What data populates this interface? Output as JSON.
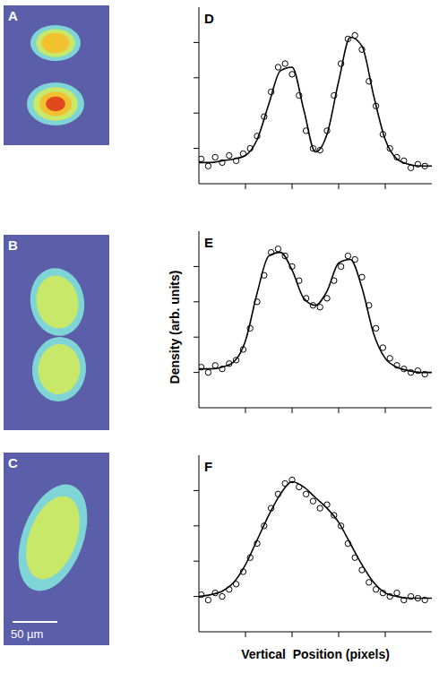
{
  "chart_data": [
    {
      "panel": "D",
      "type": "line",
      "xlim": [
        0,
        100
      ],
      "xticks": [
        20,
        40,
        60,
        80
      ],
      "ylim": [
        0,
        1
      ],
      "yticks": [
        0.2,
        0.4,
        0.6,
        0.8
      ],
      "tick_labels": false,
      "grid": false,
      "series": [
        {
          "type": "scatter",
          "marker": "open_circle",
          "color": "#000000",
          "x": [
            1,
            4,
            7,
            10,
            13,
            16,
            19,
            22,
            25,
            28,
            31,
            34,
            37,
            40,
            43,
            46,
            49,
            52,
            55,
            58,
            61,
            64,
            67,
            70,
            73,
            76,
            79,
            82,
            85,
            88,
            91,
            94,
            97
          ],
          "values": [
            0.14,
            0.1,
            0.15,
            0.12,
            0.16,
            0.13,
            0.17,
            0.2,
            0.27,
            0.38,
            0.52,
            0.66,
            0.68,
            0.62,
            0.5,
            0.3,
            0.2,
            0.19,
            0.3,
            0.5,
            0.68,
            0.82,
            0.84,
            0.76,
            0.58,
            0.44,
            0.28,
            0.2,
            0.15,
            0.13,
            0.09,
            0.11,
            0.1
          ]
        },
        {
          "type": "line",
          "line_style": "solid",
          "color": "#000000",
          "x": [
            0,
            5,
            10,
            15,
            20,
            25,
            30,
            35,
            40,
            45,
            50,
            55,
            60,
            65,
            70,
            75,
            80,
            85,
            90,
            95,
            100
          ],
          "values": [
            0.12,
            0.12,
            0.13,
            0.14,
            0.16,
            0.25,
            0.45,
            0.64,
            0.66,
            0.42,
            0.18,
            0.28,
            0.58,
            0.83,
            0.78,
            0.5,
            0.25,
            0.14,
            0.11,
            0.1,
            0.1
          ]
        }
      ]
    },
    {
      "panel": "E",
      "type": "line",
      "ylabel": "Density (arb. units)",
      "xlim": [
        0,
        100
      ],
      "xticks": [
        20,
        40,
        60,
        80
      ],
      "ylim": [
        0,
        1
      ],
      "yticks": [
        0.2,
        0.4,
        0.6,
        0.8
      ],
      "tick_labels": false,
      "grid": false,
      "series": [
        {
          "type": "scatter",
          "marker": "open_circle",
          "color": "#000000",
          "x": [
            1,
            4,
            7,
            10,
            13,
            16,
            19,
            22,
            25,
            28,
            31,
            34,
            37,
            40,
            43,
            46,
            49,
            52,
            55,
            58,
            61,
            64,
            67,
            70,
            73,
            76,
            79,
            82,
            85,
            88,
            91,
            94,
            97
          ],
          "values": [
            0.23,
            0.2,
            0.24,
            0.22,
            0.25,
            0.27,
            0.33,
            0.45,
            0.6,
            0.75,
            0.88,
            0.9,
            0.86,
            0.8,
            0.72,
            0.62,
            0.58,
            0.57,
            0.62,
            0.72,
            0.8,
            0.86,
            0.84,
            0.74,
            0.58,
            0.45,
            0.34,
            0.28,
            0.24,
            0.22,
            0.2,
            0.21,
            0.19
          ]
        },
        {
          "type": "line",
          "line_style": "solid",
          "color": "#000000",
          "x": [
            0,
            5,
            10,
            15,
            20,
            25,
            30,
            35,
            40,
            45,
            50,
            55,
            60,
            65,
            70,
            75,
            80,
            85,
            90,
            95,
            100
          ],
          "values": [
            0.22,
            0.22,
            0.23,
            0.26,
            0.38,
            0.65,
            0.86,
            0.88,
            0.78,
            0.62,
            0.58,
            0.66,
            0.82,
            0.84,
            0.68,
            0.42,
            0.28,
            0.23,
            0.21,
            0.2,
            0.2
          ]
        }
      ]
    },
    {
      "panel": "F",
      "type": "line",
      "xlabel": "Vertical  Position (pixels)",
      "xlim": [
        0,
        100
      ],
      "xticks": [
        20,
        40,
        60,
        80
      ],
      "ylim": [
        0,
        1
      ],
      "yticks": [
        0.2,
        0.4,
        0.6,
        0.8
      ],
      "tick_labels": false,
      "grid": false,
      "series": [
        {
          "type": "scatter",
          "marker": "open_circle",
          "color": "#000000",
          "x": [
            1,
            4,
            7,
            10,
            13,
            16,
            19,
            22,
            25,
            28,
            31,
            34,
            37,
            40,
            43,
            46,
            49,
            52,
            55,
            58,
            61,
            64,
            67,
            70,
            73,
            76,
            79,
            82,
            85,
            88,
            91,
            94,
            97
          ],
          "values": [
            0.21,
            0.18,
            0.22,
            0.2,
            0.24,
            0.27,
            0.34,
            0.42,
            0.5,
            0.6,
            0.7,
            0.78,
            0.84,
            0.86,
            0.82,
            0.78,
            0.74,
            0.7,
            0.72,
            0.66,
            0.6,
            0.5,
            0.42,
            0.35,
            0.28,
            0.24,
            0.22,
            0.2,
            0.22,
            0.18,
            0.2,
            0.19,
            0.18
          ]
        },
        {
          "type": "line",
          "line_style": "solid",
          "color": "#000000",
          "x": [
            0,
            5,
            10,
            15,
            20,
            25,
            30,
            35,
            40,
            45,
            50,
            55,
            60,
            65,
            70,
            75,
            80,
            85,
            90,
            95,
            100
          ],
          "values": [
            0.2,
            0.21,
            0.23,
            0.28,
            0.38,
            0.52,
            0.66,
            0.78,
            0.85,
            0.82,
            0.76,
            0.7,
            0.62,
            0.5,
            0.38,
            0.28,
            0.22,
            0.2,
            0.19,
            0.19,
            0.19
          ]
        }
      ]
    }
  ],
  "images": [
    {
      "panel": "A"
    },
    {
      "panel": "B"
    },
    {
      "panel": "C",
      "scale_bar": "50 µm"
    }
  ]
}
